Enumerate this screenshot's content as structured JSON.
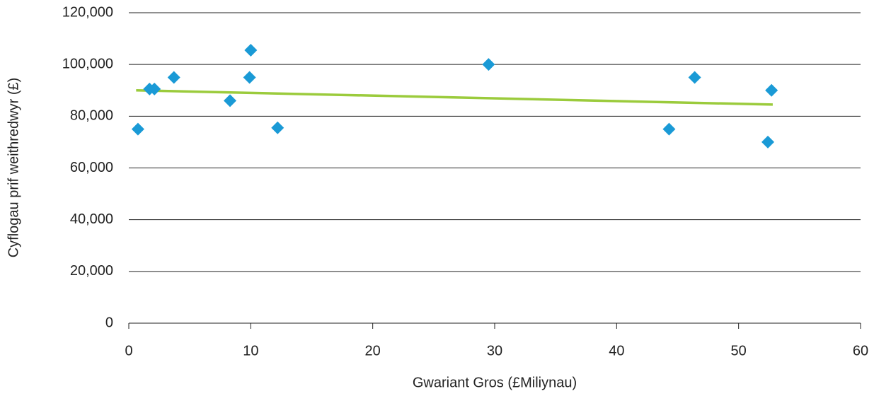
{
  "chart_data": {
    "type": "scatter",
    "x_label": "Gwariant Gros (£Miliynau)",
    "y_label": "Cyflogau prif weithredwyr (£)",
    "series": [
      {
        "color": "#1a9ad6",
        "x": [
          0.75,
          1.7,
          2.1,
          3.7,
          8.3,
          9.9,
          10.0,
          12.2,
          29.5,
          44.3,
          46.4,
          52.4,
          52.7
        ],
        "values": [
          75000,
          90500,
          90500,
          95000,
          86000,
          95000,
          105500,
          75500,
          100000,
          75000,
          95000,
          70000,
          90000
        ]
      }
    ],
    "trendline": {
      "color": "#9bcb3c",
      "x": [
        0.6,
        52.8
      ],
      "values": [
        90000,
        84500
      ]
    },
    "xlim": [
      0,
      60
    ],
    "xticks": [
      0,
      10,
      20,
      30,
      40,
      50,
      60
    ],
    "ylim": [
      0,
      120000
    ],
    "yticks": [
      0,
      {
        "value": 20000,
        "label": "20,000"
      },
      {
        "value": 40000,
        "label": "40,000"
      },
      {
        "value": 60000,
        "label": "60,000"
      },
      {
        "value": 80000,
        "label": "80,000"
      },
      {
        "value": 100000,
        "label": "100,000"
      },
      {
        "value": 120000,
        "label": "120,000"
      }
    ],
    "grid": true
  }
}
